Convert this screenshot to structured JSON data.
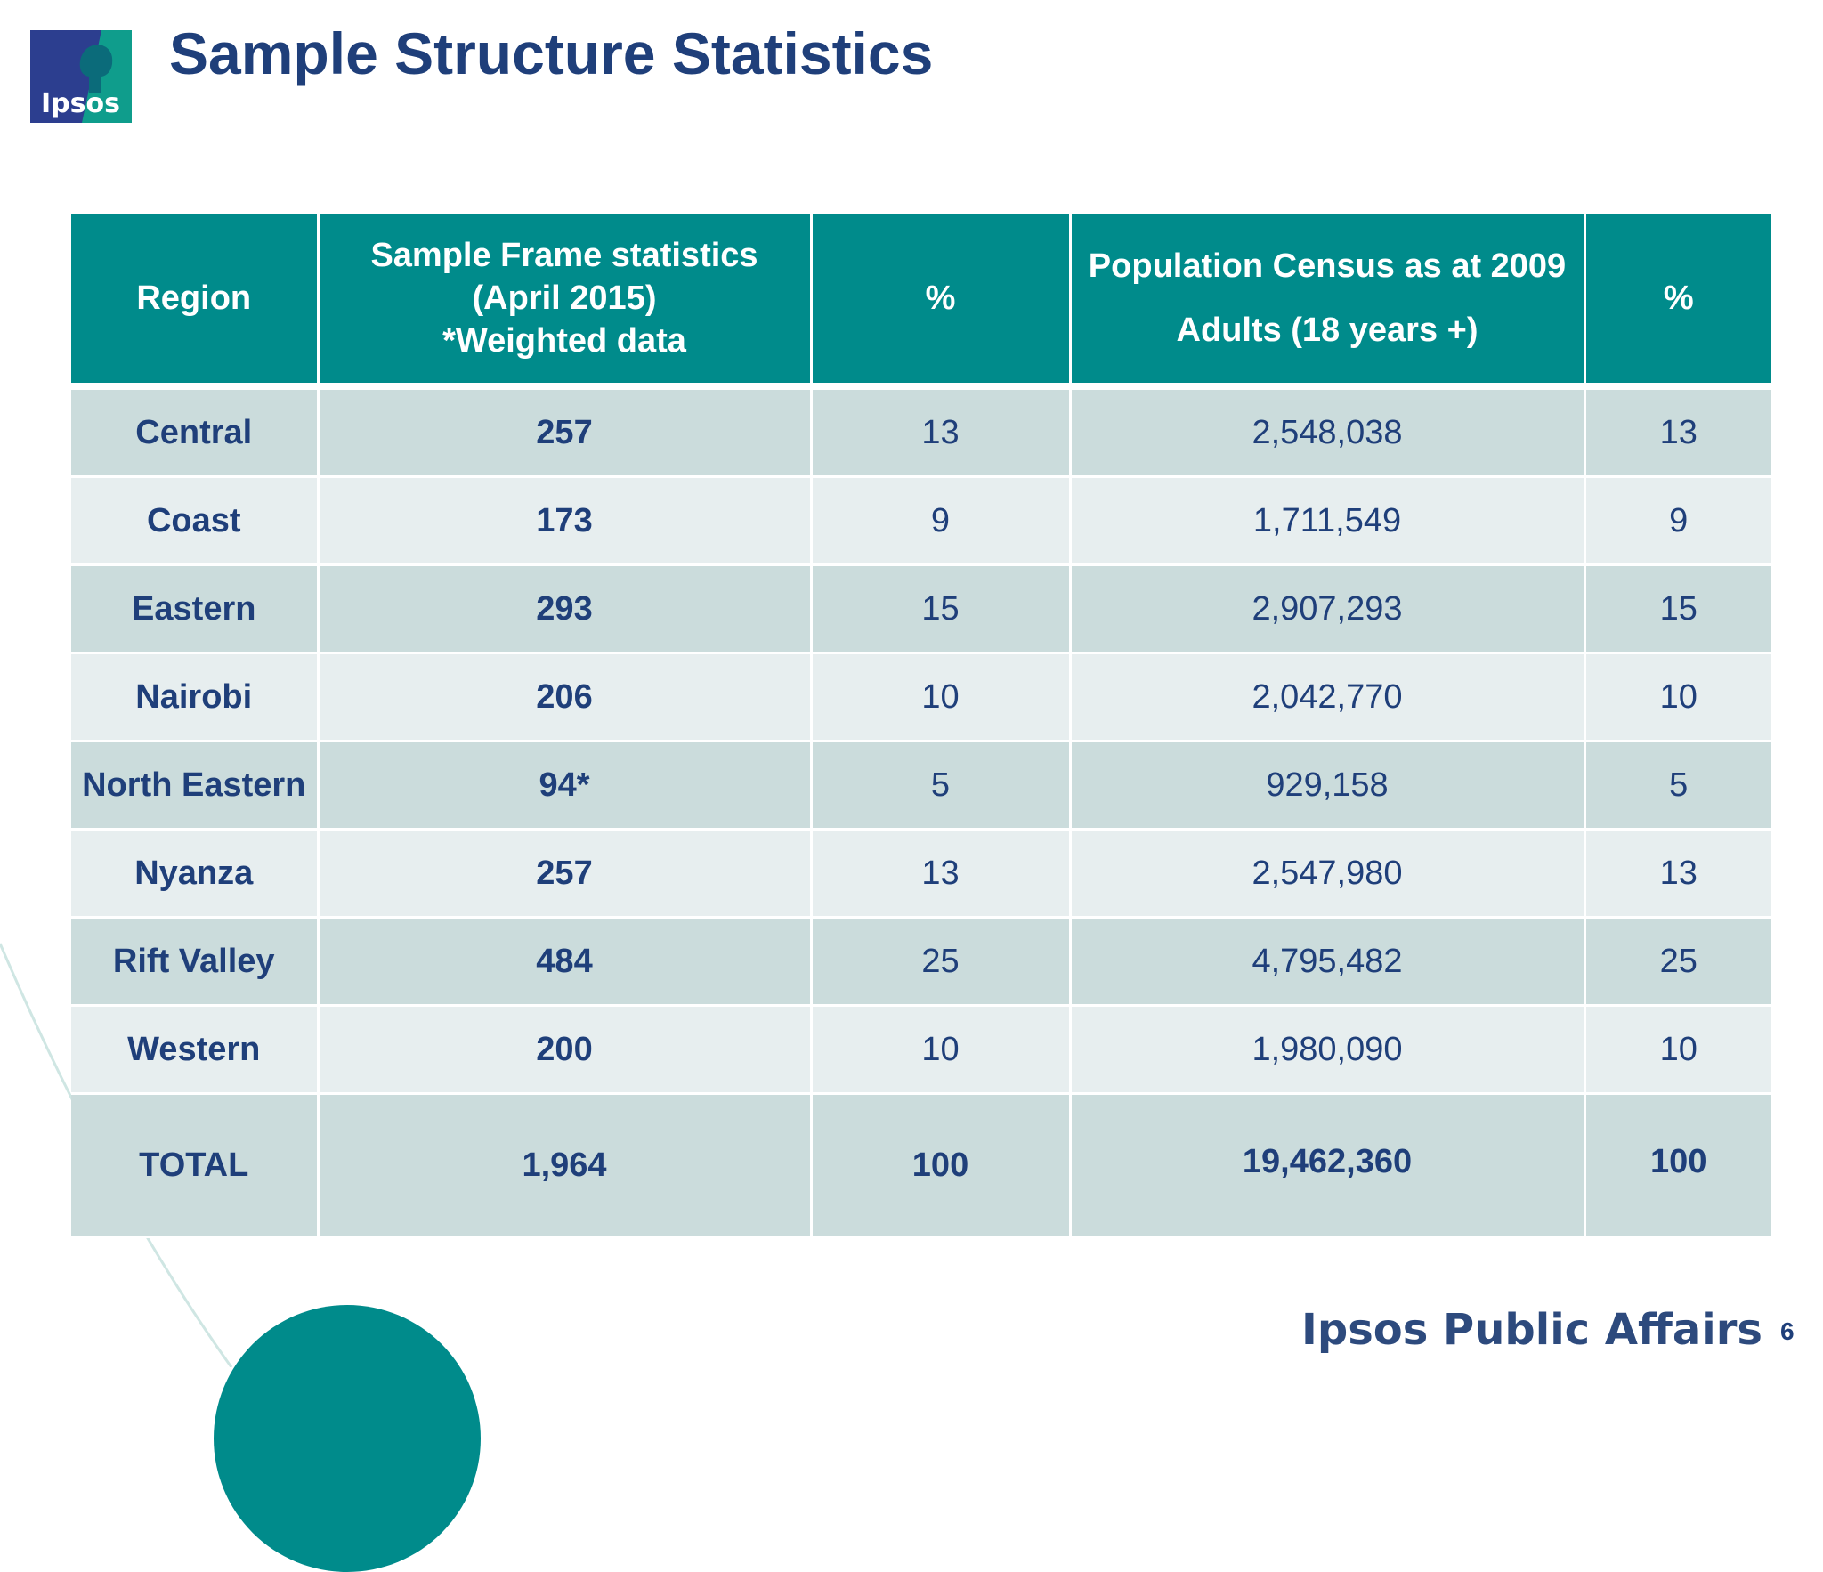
{
  "slide": {
    "title": "Sample Structure Statistics",
    "logo_text": "Ipsos",
    "footer_brand": "Ipsos Public Affairs",
    "page_number": "6"
  },
  "colors": {
    "header_bg": "#008b8b",
    "title": "#1f3f7a",
    "row_dark": "#cbdcdc",
    "row_light": "#e7eeef"
  },
  "table": {
    "headers": {
      "region": "Region",
      "sample_line1": "Sample Frame statistics",
      "sample_line2": "(April 2015)",
      "sample_line3": "*Weighted data",
      "pct1": "%",
      "census_line1": "Population Census as at 2009",
      "census_line2": "Adults (18 years +)",
      "pct2": "%"
    },
    "rows": [
      {
        "region": "Central",
        "sample": "257",
        "pct1": "13",
        "census": "2,548,038",
        "pct2": "13"
      },
      {
        "region": "Coast",
        "sample": "173",
        "pct1": "9",
        "census": "1,711,549",
        "pct2": "9"
      },
      {
        "region": "Eastern",
        "sample": "293",
        "pct1": "15",
        "census": "2,907,293",
        "pct2": "15"
      },
      {
        "region": "Nairobi",
        "sample": "206",
        "pct1": "10",
        "census": "2,042,770",
        "pct2": "10"
      },
      {
        "region": "North Eastern",
        "sample": "94*",
        "pct1": "5",
        "census": "929,158",
        "pct2": "5"
      },
      {
        "region": "Nyanza",
        "sample": "257",
        "pct1": "13",
        "census": "2,547,980",
        "pct2": "13"
      },
      {
        "region": "Rift Valley",
        "sample": "484",
        "pct1": "25",
        "census": "4,795,482",
        "pct2": "25"
      },
      {
        "region": "Western",
        "sample": "200",
        "pct1": "10",
        "census": "1,980,090",
        "pct2": "10"
      }
    ],
    "total": {
      "region": "TOTAL",
      "sample": "1,964",
      "pct1": "100",
      "census": "19,462,360",
      "pct2": "100"
    }
  }
}
